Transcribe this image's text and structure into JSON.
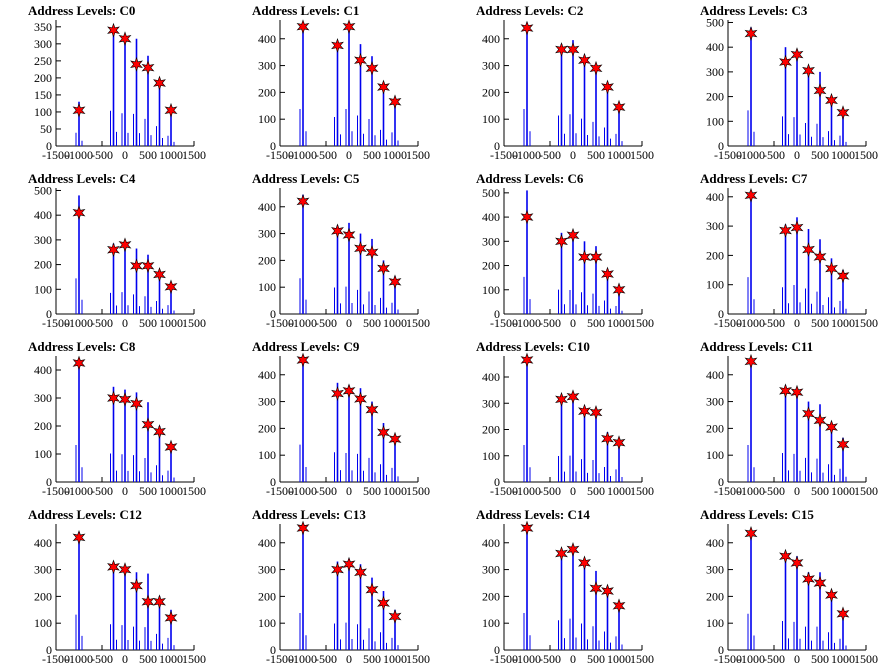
{
  "figure": {
    "title_prefix": "Address Levels: ",
    "colors": {
      "histogram": "#0000ee",
      "marker": "#ff0000",
      "marker_edge": "#000000",
      "axis": "#000000"
    }
  },
  "chart_data": [
    {
      "type": "bar",
      "title": "Address Levels: C0",
      "xlim": [
        -1500,
        1500
      ],
      "ylim": [
        0,
        370
      ],
      "yticks": [
        0,
        50,
        100,
        150,
        200,
        250,
        300,
        350
      ],
      "xticks": [
        -1500,
        -1000,
        -500,
        0,
        500,
        1000,
        1500
      ],
      "spike_x": [
        -1000,
        -250,
        0,
        250,
        500,
        750,
        1000
      ],
      "spike_heights": [
        130,
        345,
        320,
        315,
        265,
        195,
        100
      ],
      "marker_values": [
        105,
        340,
        315,
        240,
        230,
        185,
        105
      ]
    },
    {
      "type": "bar",
      "title": "Address Levels: C1",
      "xlim": [
        -1500,
        1500
      ],
      "ylim": [
        0,
        470
      ],
      "yticks": [
        0,
        100,
        200,
        300,
        400
      ],
      "xticks": [
        -1500,
        -1000,
        -500,
        0,
        500,
        1000,
        1500
      ],
      "spike_x": [
        -1000,
        -250,
        0,
        250,
        500,
        750,
        1000
      ],
      "spike_heights": [
        460,
        360,
        460,
        380,
        335,
        200,
        170
      ],
      "marker_values": [
        445,
        375,
        445,
        320,
        290,
        220,
        165
      ]
    },
    {
      "type": "bar",
      "title": "Address Levels: C2",
      "xlim": [
        -1500,
        1500
      ],
      "ylim": [
        0,
        470
      ],
      "yticks": [
        0,
        100,
        200,
        300,
        400
      ],
      "xticks": [
        -1500,
        -1000,
        -500,
        0,
        500,
        1000,
        1500
      ],
      "spike_x": [
        -1000,
        -250,
        0,
        250,
        500,
        750,
        1000
      ],
      "spike_heights": [
        460,
        380,
        395,
        340,
        300,
        230,
        150
      ],
      "marker_values": [
        440,
        360,
        360,
        320,
        290,
        220,
        145
      ]
    },
    {
      "type": "bar",
      "title": "Address Levels: C3",
      "xlim": [
        -1500,
        1500
      ],
      "ylim": [
        0,
        510
      ],
      "yticks": [
        0,
        100,
        200,
        300,
        400,
        500
      ],
      "xticks": [
        -1500,
        -1000,
        -500,
        0,
        500,
        1000,
        1500
      ],
      "spike_x": [
        -1000,
        -250,
        0,
        250,
        500,
        750,
        1000
      ],
      "spike_heights": [
        480,
        400,
        390,
        310,
        300,
        200,
        140
      ],
      "marker_values": [
        455,
        340,
        370,
        305,
        225,
        185,
        135
      ]
    },
    {
      "type": "bar",
      "title": "Address Levels: C4",
      "xlim": [
        -1500,
        1500
      ],
      "ylim": [
        0,
        510
      ],
      "yticks": [
        0,
        100,
        200,
        300,
        400,
        500
      ],
      "xticks": [
        -1500,
        -1000,
        -500,
        0,
        500,
        1000,
        1500
      ],
      "spike_x": [
        -1000,
        -250,
        0,
        250,
        500,
        750,
        1000
      ],
      "spike_heights": [
        480,
        285,
        295,
        265,
        240,
        175,
        120
      ],
      "marker_values": [
        410,
        260,
        280,
        195,
        195,
        160,
        110
      ]
    },
    {
      "type": "bar",
      "title": "Address Levels: C5",
      "xlim": [
        -1500,
        1500
      ],
      "ylim": [
        0,
        470
      ],
      "yticks": [
        0,
        100,
        200,
        300,
        400
      ],
      "xticks": [
        -1500,
        -1000,
        -500,
        0,
        500,
        1000,
        1500
      ],
      "spike_x": [
        -1000,
        -250,
        0,
        250,
        500,
        750,
        1000
      ],
      "spike_heights": [
        445,
        330,
        340,
        300,
        280,
        200,
        140
      ],
      "marker_values": [
        420,
        310,
        295,
        245,
        230,
        170,
        120
      ]
    },
    {
      "type": "bar",
      "title": "Address Levels: C6",
      "xlim": [
        -1500,
        1500
      ],
      "ylim": [
        0,
        520
      ],
      "yticks": [
        0,
        100,
        200,
        300,
        400,
        500
      ],
      "xticks": [
        -1500,
        -1000,
        -500,
        0,
        500,
        1000,
        1500
      ],
      "spike_x": [
        -1000,
        -250,
        0,
        250,
        500,
        750,
        1000
      ],
      "spike_heights": [
        510,
        335,
        330,
        300,
        280,
        185,
        110
      ],
      "marker_values": [
        400,
        300,
        325,
        235,
        235,
        165,
        100
      ]
    },
    {
      "type": "bar",
      "title": "Address Levels: C7",
      "xlim": [
        -1500,
        1500
      ],
      "ylim": [
        0,
        430
      ],
      "yticks": [
        0,
        100,
        200,
        300,
        400
      ],
      "xticks": [
        -1500,
        -1000,
        -500,
        0,
        500,
        1000,
        1500
      ],
      "spike_x": [
        -1000,
        -250,
        0,
        250,
        500,
        750,
        1000
      ],
      "spike_heights": [
        420,
        305,
        330,
        290,
        255,
        190,
        150
      ],
      "marker_values": [
        405,
        285,
        295,
        220,
        195,
        155,
        130
      ]
    },
    {
      "type": "bar",
      "title": "Address Levels: C8",
      "xlim": [
        -1500,
        1500
      ],
      "ylim": [
        0,
        450
      ],
      "yticks": [
        0,
        100,
        200,
        300,
        400
      ],
      "xticks": [
        -1500,
        -1000,
        -500,
        0,
        500,
        1000,
        1500
      ],
      "spike_x": [
        -1000,
        -250,
        0,
        250,
        500,
        750,
        1000
      ],
      "spike_heights": [
        440,
        340,
        330,
        320,
        285,
        200,
        135
      ],
      "marker_values": [
        425,
        300,
        295,
        280,
        205,
        180,
        125
      ]
    },
    {
      "type": "bar",
      "title": "Address Levels: C9",
      "xlim": [
        -1500,
        1500
      ],
      "ylim": [
        0,
        470
      ],
      "yticks": [
        0,
        100,
        200,
        300,
        400
      ],
      "xticks": [
        -1500,
        -1000,
        -500,
        0,
        500,
        1000,
        1500
      ],
      "spike_x": [
        -1000,
        -250,
        0,
        250,
        500,
        750,
        1000
      ],
      "spike_heights": [
        465,
        370,
        360,
        350,
        300,
        220,
        175
      ],
      "marker_values": [
        455,
        330,
        340,
        310,
        270,
        185,
        160
      ]
    },
    {
      "type": "bar",
      "title": "Address Levels: C10",
      "xlim": [
        -1500,
        1500
      ],
      "ylim": [
        0,
        480
      ],
      "yticks": [
        0,
        100,
        200,
        300,
        400
      ],
      "xticks": [
        -1500,
        -1000,
        -500,
        0,
        500,
        1000,
        1500
      ],
      "spike_x": [
        -1000,
        -250,
        0,
        250,
        500,
        750,
        1000
      ],
      "spike_heights": [
        470,
        330,
        335,
        290,
        280,
        190,
        160
      ],
      "marker_values": [
        465,
        315,
        325,
        270,
        265,
        165,
        150
      ]
    },
    {
      "type": "bar",
      "title": "Address Levels: C11",
      "xlim": [
        -1500,
        1500
      ],
      "ylim": [
        0,
        470
      ],
      "yticks": [
        0,
        100,
        200,
        300,
        400
      ],
      "xticks": [
        -1500,
        -1000,
        -500,
        0,
        500,
        1000,
        1500
      ],
      "spike_x": [
        -1000,
        -250,
        0,
        250,
        500,
        750,
        1000
      ],
      "spike_heights": [
        460,
        360,
        350,
        300,
        290,
        220,
        165
      ],
      "marker_values": [
        450,
        340,
        335,
        255,
        230,
        205,
        140
      ]
    },
    {
      "type": "bar",
      "title": "Address Levels: C12",
      "xlim": [
        -1500,
        1500
      ],
      "ylim": [
        0,
        470
      ],
      "yticks": [
        0,
        100,
        200,
        300,
        400
      ],
      "xticks": [
        -1500,
        -1000,
        -500,
        0,
        500,
        1000,
        1500
      ],
      "spike_x": [
        -1000,
        -250,
        0,
        250,
        500,
        750,
        1000
      ],
      "spike_heights": [
        440,
        320,
        310,
        290,
        285,
        200,
        150
      ],
      "marker_values": [
        420,
        310,
        300,
        240,
        180,
        180,
        120
      ]
    },
    {
      "type": "bar",
      "title": "Address Levels: C13",
      "xlim": [
        -1500,
        1500
      ],
      "ylim": [
        0,
        470
      ],
      "yticks": [
        0,
        100,
        200,
        300,
        400
      ],
      "xticks": [
        -1500,
        -1000,
        -500,
        0,
        500,
        1000,
        1500
      ],
      "spike_x": [
        -1000,
        -250,
        0,
        250,
        500,
        750,
        1000
      ],
      "spike_heights": [
        460,
        330,
        340,
        320,
        270,
        220,
        150
      ],
      "marker_values": [
        455,
        300,
        320,
        290,
        225,
        175,
        125
      ]
    },
    {
      "type": "bar",
      "title": "Address Levels: C14",
      "xlim": [
        -1500,
        1500
      ],
      "ylim": [
        0,
        470
      ],
      "yticks": [
        0,
        100,
        200,
        300,
        400
      ],
      "xticks": [
        -1500,
        -1000,
        -500,
        0,
        500,
        1000,
        1500
      ],
      "spike_x": [
        -1000,
        -250,
        0,
        250,
        500,
        750,
        1000
      ],
      "spike_heights": [
        460,
        370,
        390,
        330,
        295,
        230,
        170
      ],
      "marker_values": [
        455,
        360,
        375,
        325,
        230,
        220,
        165
      ]
    },
    {
      "type": "bar",
      "title": "Address Levels: C15",
      "xlim": [
        -1500,
        1500
      ],
      "ylim": [
        0,
        470
      ],
      "yticks": [
        0,
        100,
        200,
        300,
        400
      ],
      "xticks": [
        -1500,
        -1000,
        -500,
        0,
        500,
        1000,
        1500
      ],
      "spike_x": [
        -1000,
        -250,
        0,
        250,
        500,
        750,
        1000
      ],
      "spike_heights": [
        450,
        360,
        350,
        290,
        290,
        220,
        140
      ],
      "marker_values": [
        435,
        350,
        325,
        265,
        250,
        205,
        135
      ]
    }
  ]
}
